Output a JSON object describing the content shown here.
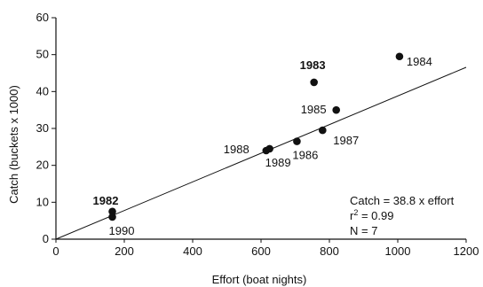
{
  "chart_data": {
    "type": "scatter",
    "title": "",
    "xlabel": "Effort (boat nights)",
    "ylabel": "Catch (buckets x 1000)",
    "xlim": [
      0,
      1200
    ],
    "ylim": [
      0,
      60
    ],
    "xticks": [
      0,
      200,
      400,
      600,
      800,
      1000,
      1200
    ],
    "yticks": [
      0,
      10,
      20,
      30,
      40,
      50,
      60
    ],
    "grid": false,
    "points": [
      {
        "x": 165,
        "y": 7.5,
        "label": "1982",
        "bold": true
      },
      {
        "x": 755,
        "y": 42.5,
        "label": "1983",
        "bold": true
      },
      {
        "x": 1005,
        "y": 49.5,
        "label": "1984",
        "bold": false
      },
      {
        "x": 820,
        "y": 35,
        "label": "1985",
        "bold": false
      },
      {
        "x": 705,
        "y": 26.5,
        "label": "1986",
        "bold": false
      },
      {
        "x": 780,
        "y": 29.5,
        "label": "1987",
        "bold": false
      },
      {
        "x": 615,
        "y": 24,
        "label": "1988",
        "bold": false
      },
      {
        "x": 625,
        "y": 24.5,
        "label": "1989",
        "bold": false
      },
      {
        "x": 165,
        "y": 6,
        "label": "1990",
        "bold": false
      }
    ],
    "fit_line": {
      "slope": 0.0388,
      "intercept": 0,
      "x_range": [
        0,
        1200
      ]
    },
    "annotation": {
      "line1": "Catch = 38.8 x effort",
      "line2_prefix": "r",
      "line2_sup": "2",
      "line2_suffix": " = 0.99",
      "line3": "N = 7"
    }
  }
}
